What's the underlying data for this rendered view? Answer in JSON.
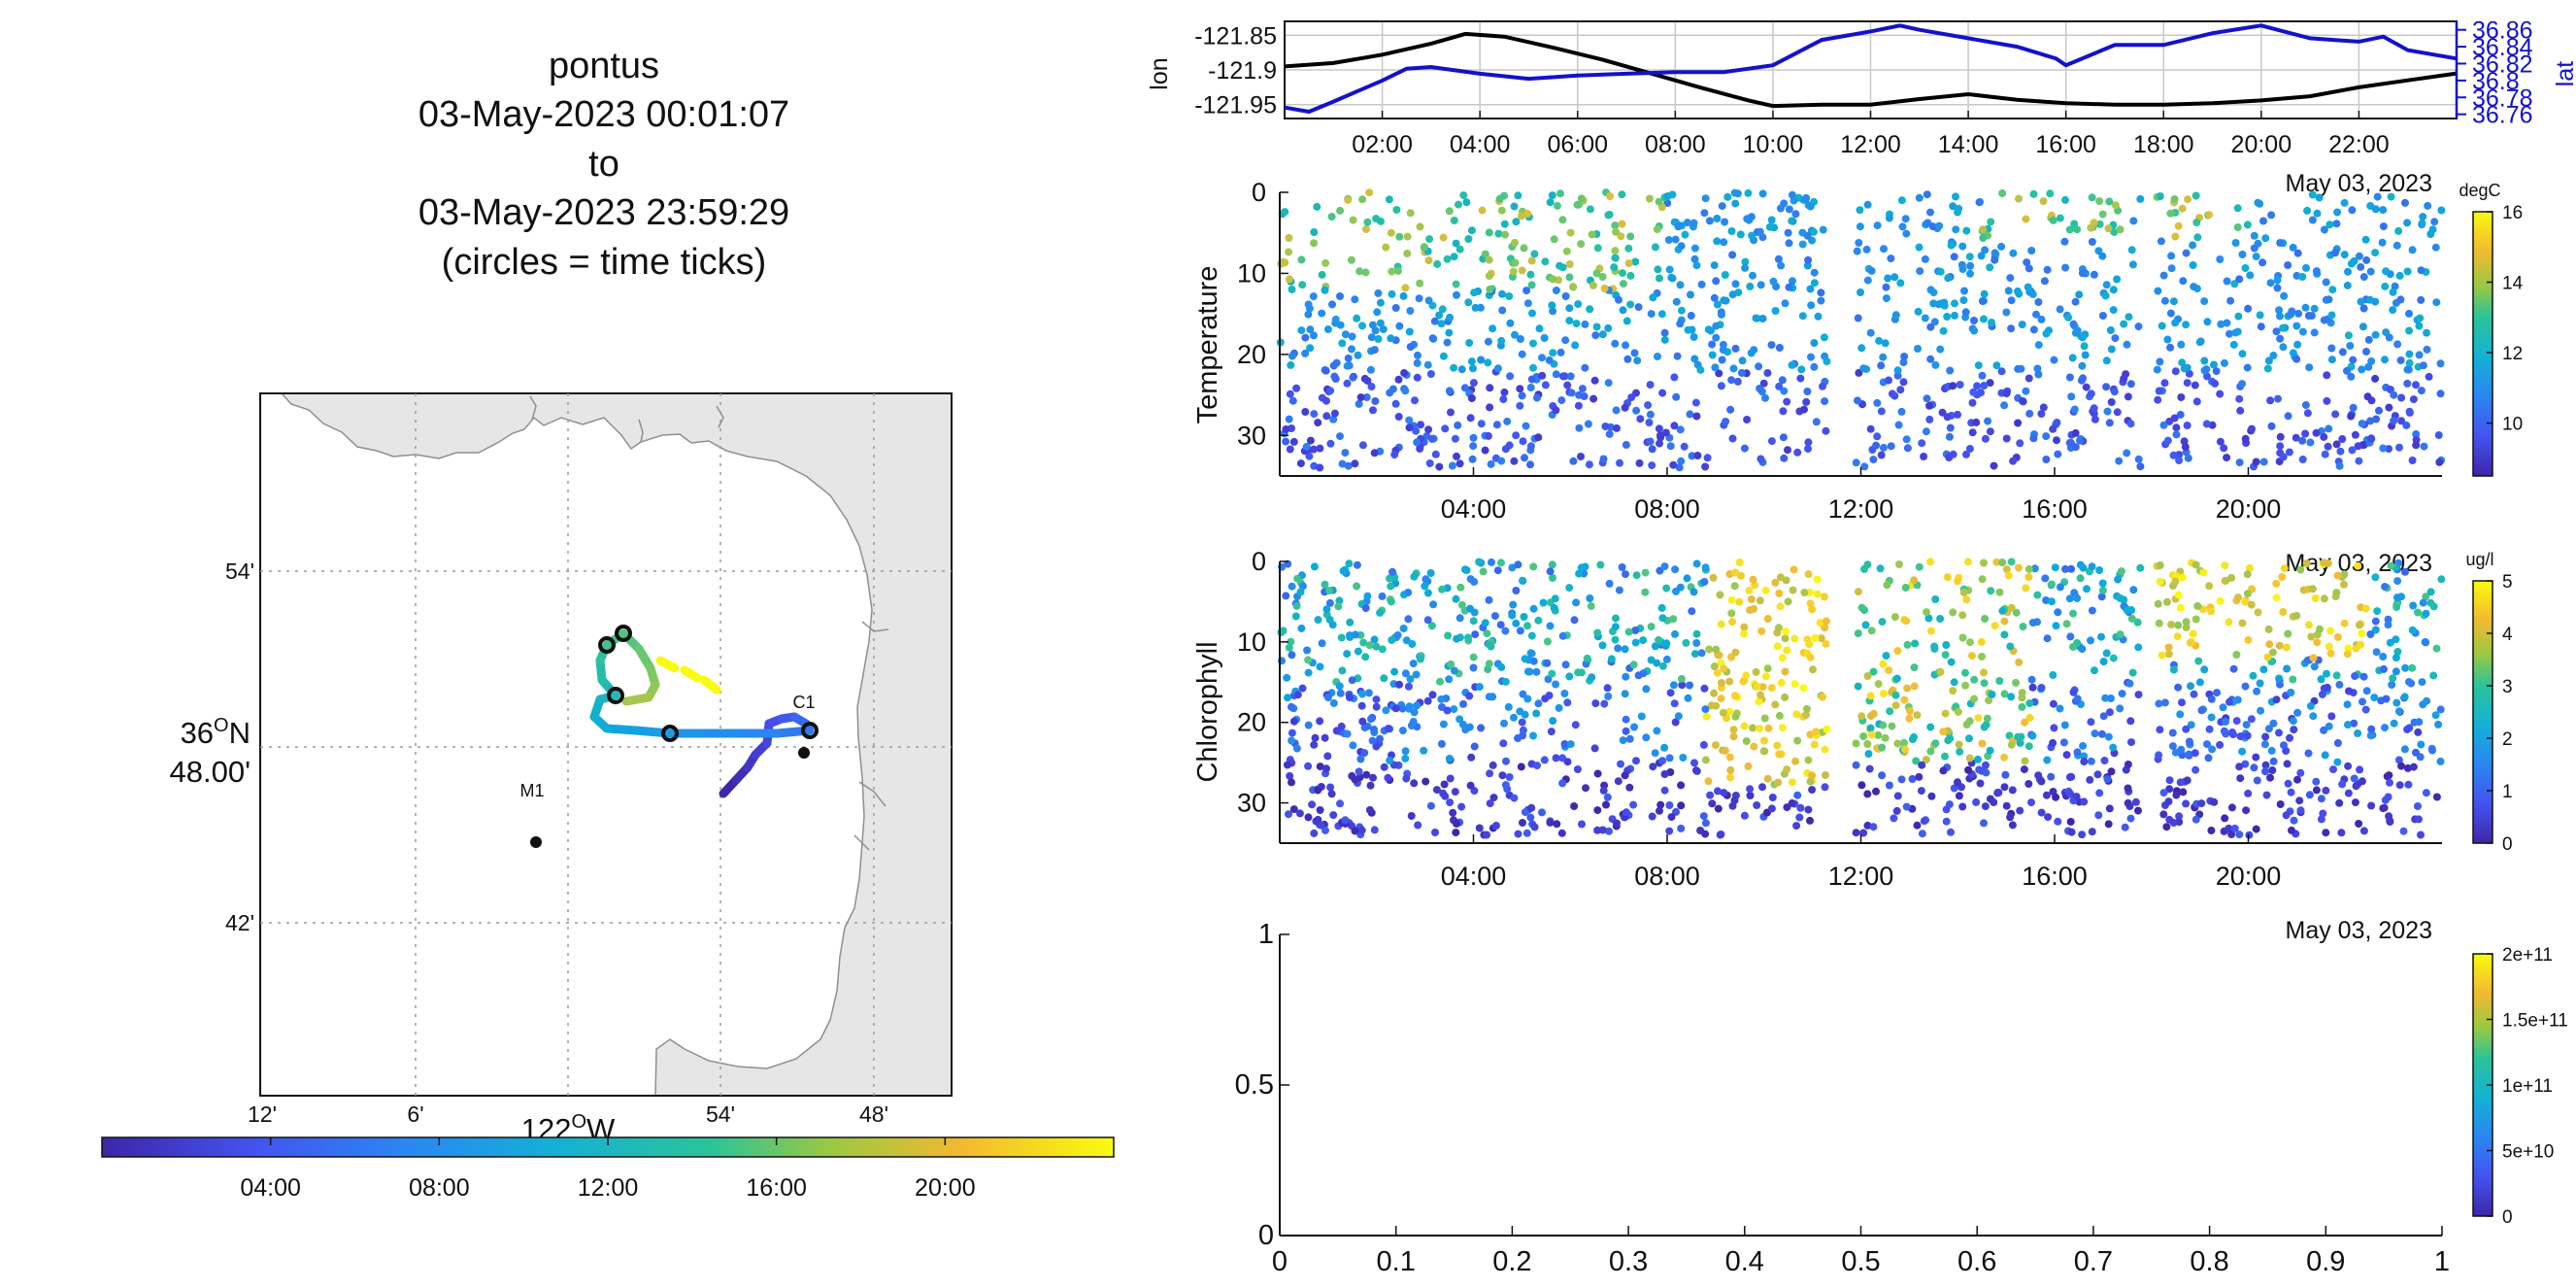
{
  "title": {
    "line1": "pontus",
    "line2": "03-May-2023 00:01:07",
    "line3": "to",
    "line4": "03-May-2023 23:59:29",
    "line5": "(circles = time ticks)"
  },
  "chart_data": [
    {
      "type": "map-track",
      "lat_ticks": [
        "54'",
        "36ᴼN 48.00'",
        "42'"
      ],
      "lat_tick_top": "36",
      "lat_tick_sup": "O",
      "lat_tick_suffix": "N",
      "lat_tick_bottom": "48.00'",
      "lon_ticks": [
        "12'",
        "6'",
        "54'",
        "48'"
      ],
      "lon_label_main": "122",
      "lon_label_sup": "O",
      "lon_label_suffix": "W",
      "stations": [
        {
          "name": "M1"
        },
        {
          "name": "C1"
        }
      ],
      "colorbar_ticks": [
        "04:00",
        "08:00",
        "12:00",
        "16:00",
        "20:00"
      ],
      "colors": {
        "land": "#e6e6e6",
        "coast": "#8f8f8f",
        "water": "#ffffff"
      }
    },
    {
      "type": "line",
      "ylabel": "lon",
      "y2label": "lat",
      "x_ticks": [
        "02:00",
        "04:00",
        "06:00",
        "08:00",
        "10:00",
        "12:00",
        "14:00",
        "16:00",
        "18:00",
        "20:00",
        "22:00"
      ],
      "date_label": "May 03, 2023",
      "ylim": [
        -121.97,
        -121.83
      ],
      "yticks": [
        "-121.85",
        "-121.9",
        "-121.95"
      ],
      "y2lim": [
        36.755,
        36.87
      ],
      "y2ticks": [
        "36.86",
        "36.84",
        "36.82",
        "36.8",
        "36.78",
        "36.76"
      ],
      "series": [
        {
          "color": "#000000",
          "x": [
            0,
            1,
            2,
            3,
            3.7,
            4.5,
            5.5,
            6.5,
            7.5,
            8.5,
            9.5,
            10,
            11,
            12,
            13,
            14,
            15,
            16,
            17,
            18,
            19,
            20,
            21,
            22,
            23,
            24
          ],
          "y": [
            -121.895,
            -121.89,
            -121.878,
            -121.862,
            -121.848,
            -121.852,
            -121.868,
            -121.885,
            -121.905,
            -121.925,
            -121.944,
            -121.952,
            -121.95,
            -121.95,
            -121.942,
            -121.935,
            -121.943,
            -121.948,
            -121.95,
            -121.95,
            -121.948,
            -121.944,
            -121.938,
            -121.925,
            -121.915,
            -121.905
          ]
        },
        {
          "color": "#1212cc",
          "x": [
            0,
            0.5,
            1,
            2,
            2.5,
            3,
            4,
            5,
            6,
            7,
            8,
            9,
            10,
            11,
            12,
            12.6,
            13,
            14,
            15,
            15.8,
            16,
            17,
            18,
            19,
            20,
            21,
            22,
            22.5,
            23,
            24
          ],
          "y": [
            36.768,
            36.763,
            36.775,
            36.8,
            36.814,
            36.816,
            36.808,
            36.802,
            36.806,
            36.808,
            36.81,
            36.81,
            36.818,
            36.848,
            36.858,
            36.865,
            36.86,
            36.85,
            36.84,
            36.826,
            36.818,
            36.842,
            36.842,
            36.856,
            36.865,
            36.85,
            36.846,
            36.852,
            36.836,
            36.826
          ]
        }
      ]
    },
    {
      "type": "scatter",
      "ylabel": "Temperature",
      "x_ticks": [
        "04:00",
        "08:00",
        "12:00",
        "16:00",
        "20:00"
      ],
      "date_label": "May 03, 2023",
      "yticks": [
        "0",
        "10",
        "20",
        "30"
      ],
      "ylim": [
        0,
        35
      ],
      "xlim": [
        0,
        24
      ],
      "gaps_hours": [
        [
          11.3,
          11.9
        ],
        [
          17.8,
          18.1
        ]
      ],
      "colorbar": {
        "unit": "degC",
        "ticks": [
          "16",
          "14",
          "12",
          "10"
        ],
        "range": [
          8.5,
          16
        ]
      }
    },
    {
      "type": "scatter",
      "ylabel": "Chlorophyll",
      "x_ticks": [
        "04:00",
        "08:00",
        "12:00",
        "16:00",
        "20:00"
      ],
      "date_label": "May 03, 2023",
      "yticks": [
        "0",
        "10",
        "20",
        "30"
      ],
      "ylim": [
        0,
        35
      ],
      "xlim": [
        0,
        24
      ],
      "gaps_hours": [
        [
          11.3,
          11.9
        ],
        [
          17.8,
          18.1
        ]
      ],
      "colorbar": {
        "unit": "ug/l",
        "ticks": [
          "5",
          "4",
          "3",
          "2",
          "1",
          "0"
        ],
        "range": [
          0,
          5
        ]
      }
    },
    {
      "type": "scatter",
      "ylabel": "",
      "xlim": [
        0,
        1
      ],
      "ylim": [
        0,
        1
      ],
      "xticks": [
        "0",
        "0.1",
        "0.2",
        "0.3",
        "0.4",
        "0.5",
        "0.6",
        "0.7",
        "0.8",
        "0.9",
        "1"
      ],
      "yticks": [
        "0",
        "0.5",
        "1"
      ],
      "colorbar": {
        "unit": "",
        "ticks": [
          "2e+11",
          "1.5e+11",
          "1e+11",
          "5e+10",
          "0"
        ],
        "range": [
          0,
          200000000000.0
        ]
      }
    }
  ]
}
